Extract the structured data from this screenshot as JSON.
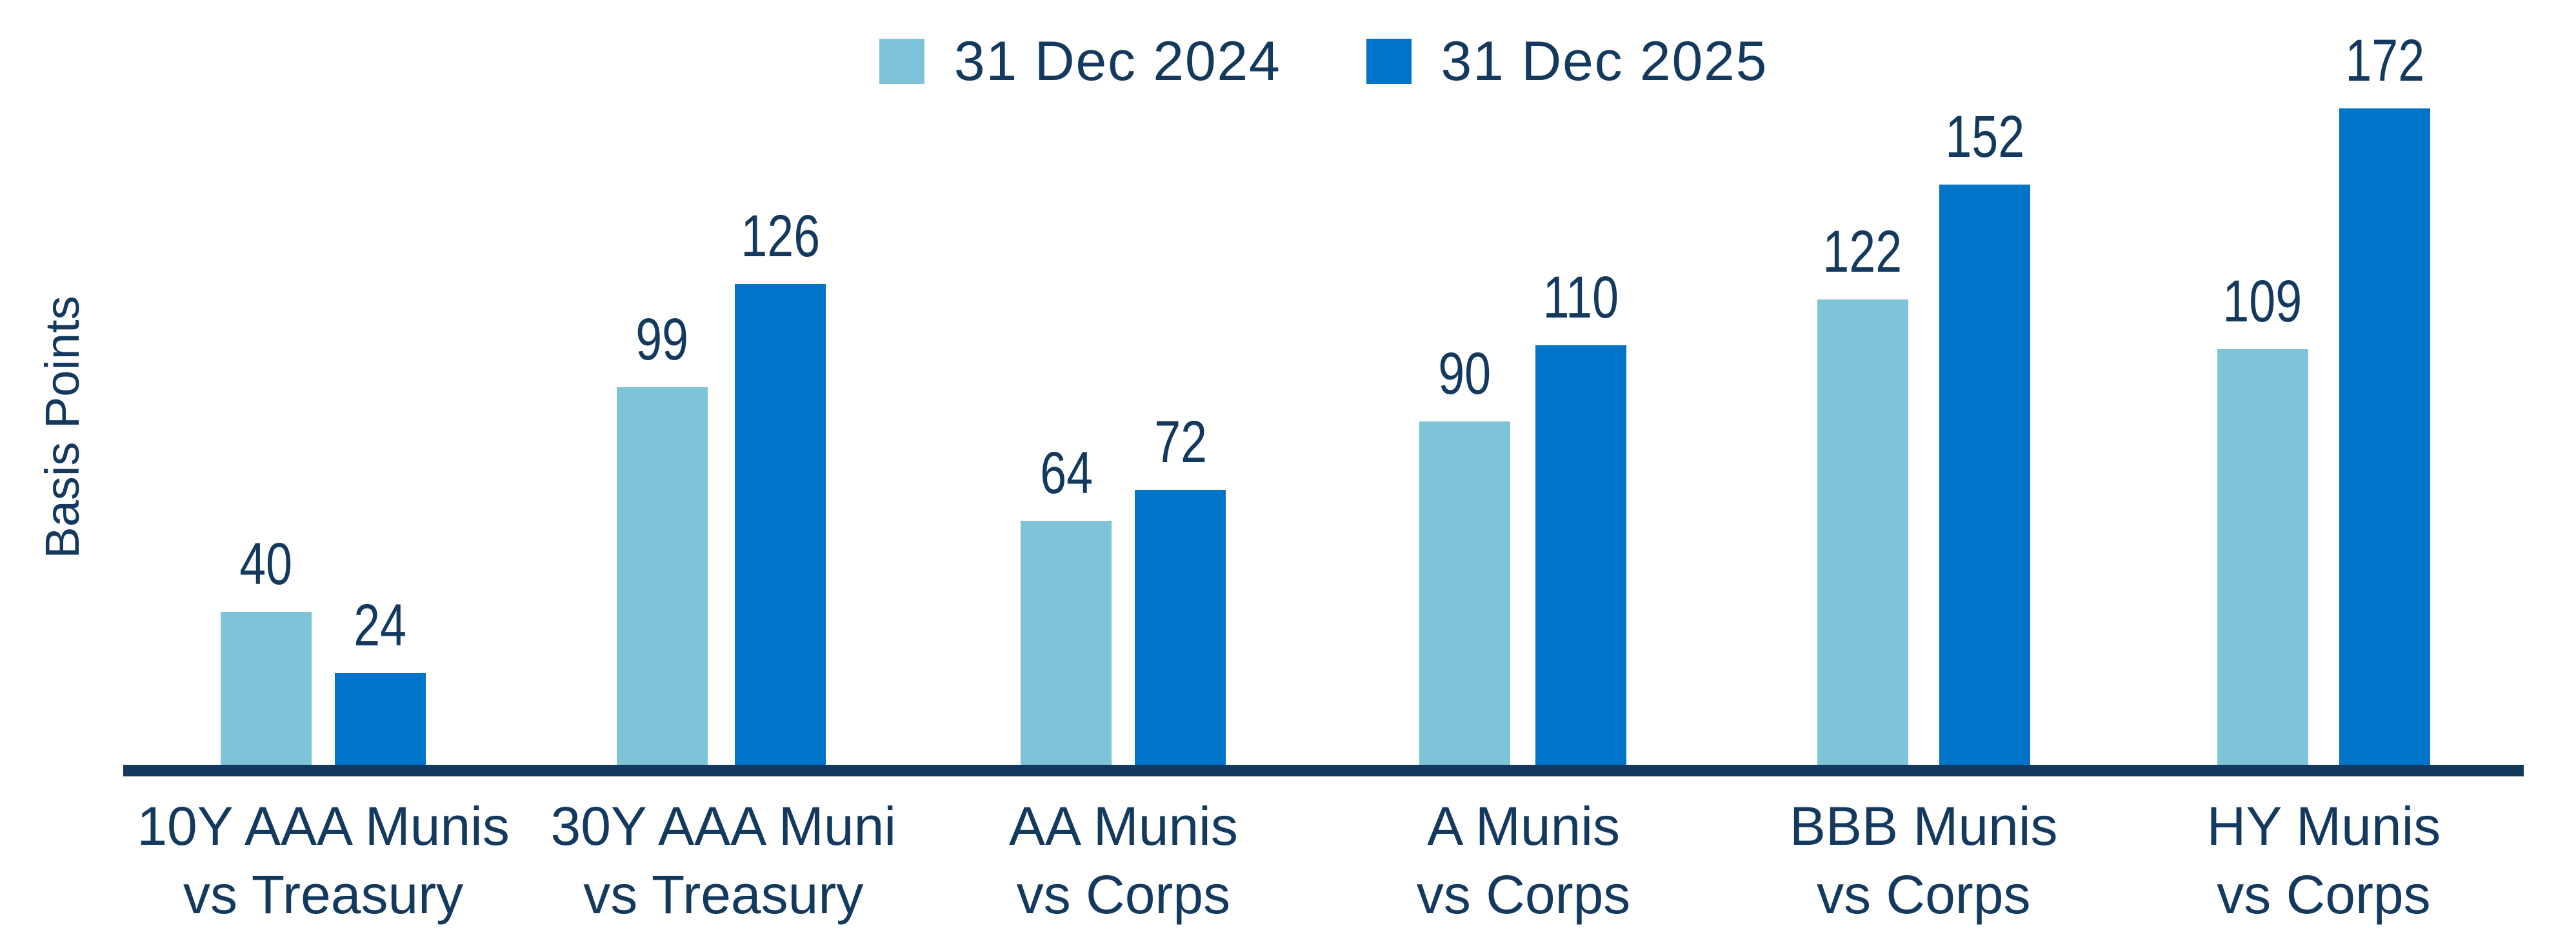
{
  "colors": {
    "navy": "#14395E",
    "light_blue": "#7EC4D8",
    "azure": "#0074C8"
  },
  "chart_data": {
    "type": "bar",
    "title": "",
    "ylabel": "Basis Points",
    "xlabel": "",
    "grid": false,
    "legend_position": "top-center",
    "value_labels": true,
    "ylim": [
      0,
      180
    ],
    "categories": [
      "10Y AAA Munis\nvs Treasury",
      "30Y AAA Muni\nvs Treasury",
      "AA Munis\nvs Corps",
      "A Munis\nvs Corps",
      "BBB Munis\nvs Corps",
      "HY Munis\nvs Corps"
    ],
    "series": [
      {
        "name": "31 Dec 2024",
        "color": "#7EC4D8",
        "values": [
          40,
          99,
          64,
          90,
          122,
          109
        ]
      },
      {
        "name": "31 Dec 2025",
        "color": "#0074C8",
        "values": [
          24,
          126,
          72,
          110,
          152,
          172
        ]
      }
    ]
  }
}
